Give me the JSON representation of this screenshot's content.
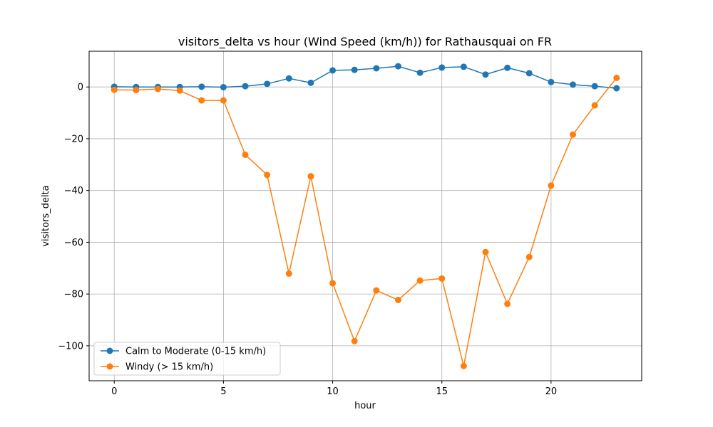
{
  "chart_data": {
    "type": "line",
    "title": "visitors_delta vs hour (Wind Speed (km/h)) for Rathausquai on FR",
    "xlabel": "hour",
    "ylabel": "visitors_delta",
    "xlim": [
      -1.15,
      24.15
    ],
    "ylim": [
      -113.5,
      13.8
    ],
    "xticks": [
      0,
      5,
      10,
      15,
      20
    ],
    "yticks": [
      0,
      -20,
      -40,
      -60,
      -80,
      -100
    ],
    "grid": true,
    "legend_position": "lower-left",
    "x": [
      0,
      1,
      2,
      3,
      4,
      5,
      6,
      7,
      8,
      9,
      10,
      11,
      12,
      13,
      14,
      15,
      16,
      17,
      18,
      19,
      20,
      21,
      22,
      23
    ],
    "series": [
      {
        "name": "Calm to Moderate (0-15 km/h)",
        "color": "#1f77b4",
        "values": [
          0.1,
          0.0,
          0.0,
          0.0,
          0.1,
          -0.1,
          0.3,
          1.2,
          3.3,
          1.6,
          6.4,
          6.6,
          7.2,
          8.0,
          5.5,
          7.5,
          7.8,
          4.8,
          7.4,
          5.3,
          1.9,
          0.9,
          0.3,
          -0.5
        ]
      },
      {
        "name": "Windy (> 15 km/h)",
        "color": "#ff7f0e",
        "values": [
          -1.1,
          -1.2,
          -0.8,
          -1.4,
          -5.2,
          -5.2,
          -26.2,
          -34.0,
          -72.1,
          -34.5,
          -75.8,
          -98.2,
          -78.6,
          -82.3,
          -74.8,
          -74.0,
          -107.8,
          -63.8,
          -83.8,
          -65.7,
          -38.1,
          -18.4,
          -7.1,
          3.5
        ]
      }
    ]
  }
}
